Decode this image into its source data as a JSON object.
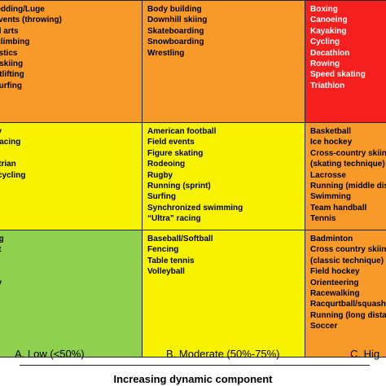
{
  "chart_data": {
    "type": "table",
    "colors": {
      "orange": "#f79a2a",
      "red": "#f41f1f",
      "yellow": "#f7f300",
      "green": "#8fd14f"
    },
    "rows": [
      {
        "cells": [
          {
            "color": "#f79a2a",
            "items": [
              "sledding/Luge",
              "l events (throwing)",
              "tial arts",
              "c climbing",
              "nastics",
              "er skiing",
              "ghtlifting",
              "dsurfing"
            ]
          },
          {
            "color": "#f79a2a",
            "items": [
              "Body building",
              "Downhill skiing",
              "Skateboarding",
              "Snowboarding",
              "Wrestling"
            ]
          },
          {
            "color": "#f41f1f",
            "items": [
              "Boxing",
              "Canoeing",
              "Kayaking",
              "Cycling",
              "Decathlon",
              "Rowing",
              "Speed skating",
              "Triathlon"
            ]
          }
        ]
      },
      {
        "cells": [
          {
            "color": "#f7f300",
            "items": [
              "ery",
              "e racing",
              "ng",
              "estrian",
              "orcycling"
            ]
          },
          {
            "color": "#f7f300",
            "items": [
              "American football",
              "Field events",
              "Figure skating",
              "Rodeoing",
              "Rugby",
              "Running (sprint)",
              "Surfing",
              "Synchronized swimming",
              "“Ultra” racing"
            ]
          },
          {
            "color": "#f79a2a",
            "items": [
              "Basketball",
              "Ice hockey",
              "Cross-country skiing",
              "(skating technique)",
              "Lacrosse",
              "Running (middle dist",
              "Swimming",
              "Team handball",
              "Tennis"
            ]
          }
        ]
      },
      {
        "cells": [
          {
            "color": "#8fd14f",
            "items": [
              "ling",
              "ket",
              "ng",
              "",
              "ery",
              "",
              "ng",
              ""
            ]
          },
          {
            "color": "#f7f300",
            "items": [
              "Baseball/Softball",
              "Fencing",
              "Table tennis",
              "Volleyball"
            ]
          },
          {
            "color": "#f79a2a",
            "items": [
              "Badminton",
              "Cross country skiing",
              "(classic technique)",
              "Field hockey",
              "Orienteering",
              "Racewalking",
              "Racqurtball/squash",
              "Running (long distan",
              "Soccer"
            ]
          }
        ]
      }
    ],
    "xticks": [
      "A. Low (<50%)",
      "B. Moderate (50%-75%)",
      "C. Hig"
    ],
    "xlabel": "Increasing dynamic component"
  }
}
